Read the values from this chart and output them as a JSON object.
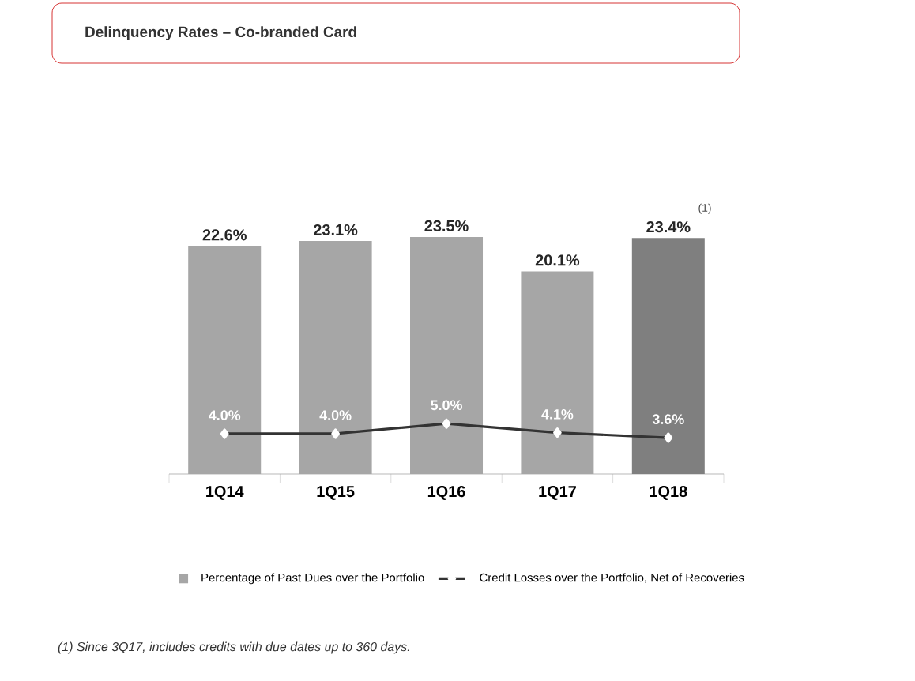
{
  "chart_data": {
    "type": "bar",
    "title": "Delinquency Rates – Co-branded Card",
    "categories": [
      "1Q14",
      "1Q15",
      "1Q16",
      "1Q17",
      "1Q18"
    ],
    "series": [
      {
        "name": "Percentage of Past Dues over the Portfolio",
        "colors": [
          "#a6a6a6",
          "#a6a6a6",
          "#a6a6a6",
          "#a6a6a6",
          "#7f7f7f"
        ],
        "values": [
          22.6,
          23.1,
          23.5,
          20.1,
          23.4
        ],
        "value_labels": [
          "22.6%",
          "23.1%",
          "23.5%",
          "20.1%",
          "23.4%"
        ]
      },
      {
        "name": "Credit Losses over the Portfolio, Net of Recoveries",
        "type": "line",
        "color": "#333333",
        "marker": "diamond",
        "values": [
          4.0,
          4.0,
          5.0,
          4.1,
          3.6
        ],
        "value_labels": [
          "4.0%",
          "4.0%",
          "5.0%",
          "4.1%",
          "3.6%"
        ]
      }
    ],
    "tick_labels": "x",
    "legend": "bottom",
    "annotations": [
      "(1)",
      "*(1) Since 3Q17, includes credits with due dates up to 360 days.*"
    ]
  }
}
